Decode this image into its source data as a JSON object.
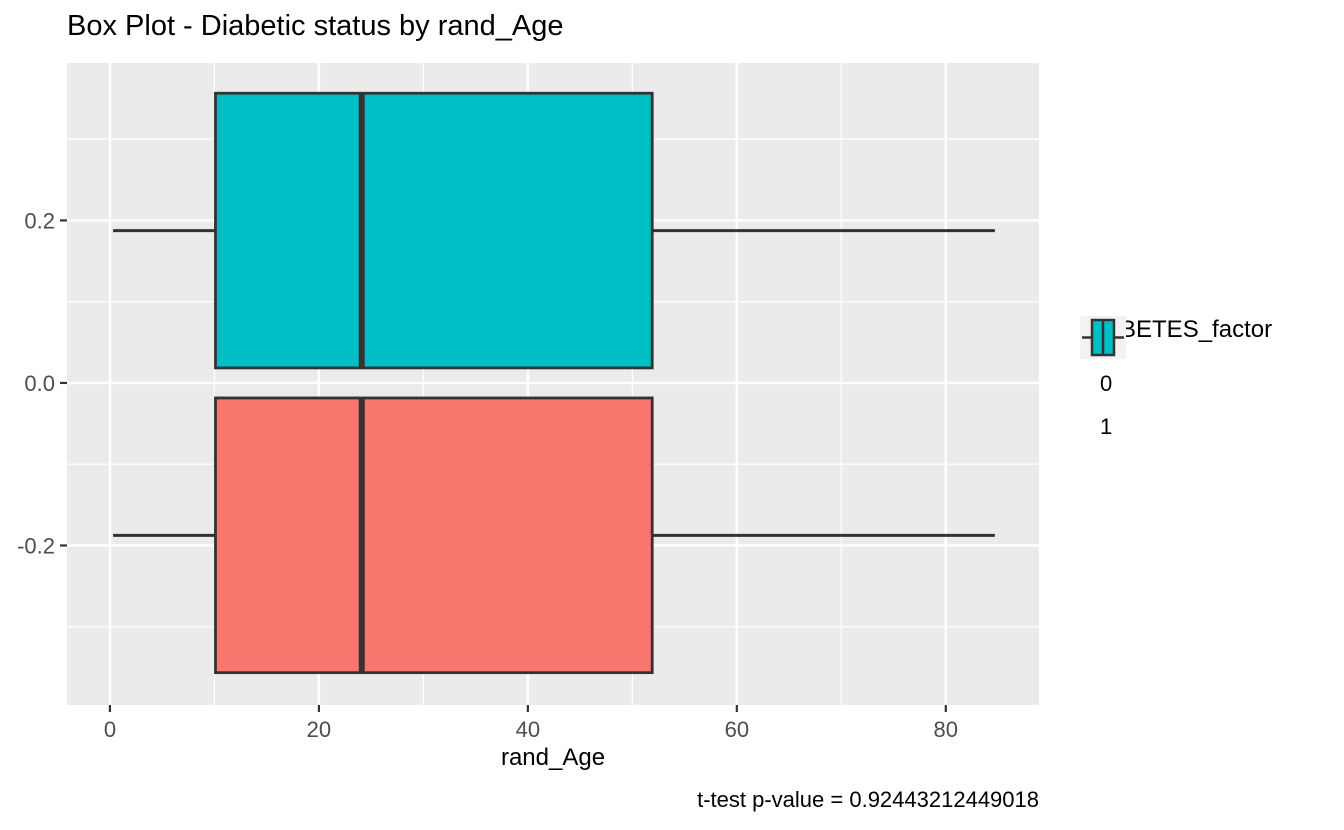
{
  "chart_data": {
    "type": "boxplot",
    "orientation": "horizontal",
    "title": "Box Plot - Diabetic status by rand_Age",
    "xlabel": "rand_Age",
    "ylabel": "",
    "caption": "t-test p-value = 0.92443212449018",
    "x_axis": {
      "ticks": [
        {
          "value": 0,
          "label": "0"
        },
        {
          "value": 20,
          "label": "20"
        },
        {
          "value": 40,
          "label": "40"
        },
        {
          "value": 60,
          "label": "60"
        },
        {
          "value": 80,
          "label": "80"
        }
      ],
      "minor": [
        10,
        30,
        50,
        70
      ],
      "lim": [
        -4.11,
        88.92
      ]
    },
    "y_axis": {
      "ticks": [
        {
          "value": 0.2,
          "label": "0.2"
        },
        {
          "value": 0.0,
          "label": "0.0"
        },
        {
          "value": -0.2,
          "label": "-0.2"
        }
      ],
      "minor": [
        0.3,
        0.1,
        -0.1,
        -0.3
      ],
      "lim": [
        -0.3963,
        0.3937
      ]
    },
    "legend": {
      "title": "DIABETES_factor",
      "position": "right",
      "entries": [
        {
          "label": "0",
          "color": "#F8766D"
        },
        {
          "label": "1",
          "color": "#00BFC4"
        }
      ]
    },
    "series": [
      {
        "name": "1",
        "fill": "#00BFC4",
        "y_center": 0.1875,
        "box_half_height": 0.169,
        "stats": {
          "min": 0.3,
          "q1": 10.1,
          "median": 24.1,
          "q3": 51.9,
          "max": 84.7
        }
      },
      {
        "name": "0",
        "fill": "#F8766D",
        "y_center": -0.1875,
        "box_half_height": 0.169,
        "stats": {
          "min": 0.3,
          "q1": 10.1,
          "median": 24.1,
          "q3": 51.9,
          "max": 84.7
        }
      }
    ],
    "style": {
      "panel_bg": "#EBEBEB",
      "grid_color": "#FFFFFF",
      "outline_color": "#333333",
      "tick_text_color": "#4D4D4D",
      "legend_key_bg": "#F2F2F2"
    },
    "grid": true
  }
}
